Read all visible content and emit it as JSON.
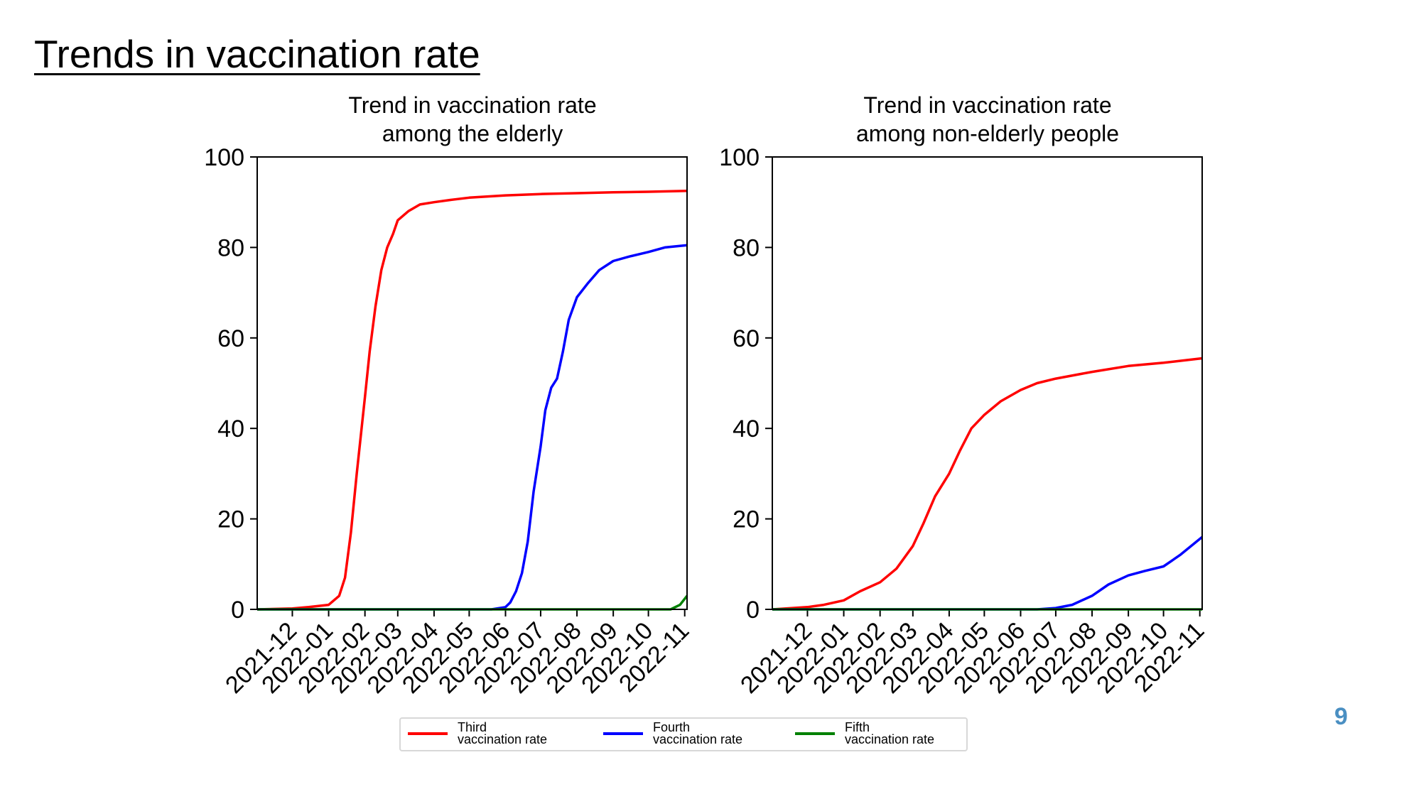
{
  "page": {
    "title": "Trends in vaccination rate",
    "page_number": "9"
  },
  "colors": {
    "third": "#ff0000",
    "fourth": "#0000ff",
    "fifth": "#008000",
    "page_number": "#4a8fc2"
  },
  "legend": {
    "items": [
      {
        "key": "third",
        "label": "Third\nvaccination rate"
      },
      {
        "key": "fourth",
        "label": "Fourth\nvaccination rate"
      },
      {
        "key": "fifth",
        "label": "Fifth\nvaccination rate"
      }
    ]
  },
  "chart_data": [
    {
      "type": "line",
      "title": "Trend in vaccination rate\namong the elderly",
      "ylim": [
        0,
        100
      ],
      "yticks": [
        0,
        20,
        40,
        60,
        80,
        100
      ],
      "xlim": [
        "2021-11-01",
        "2022-11-03"
      ],
      "xticks": [
        "2021-12",
        "2022-01",
        "2022-02",
        "2022-03",
        "2022-04",
        "2022-05",
        "2022-06",
        "2022-07",
        "2022-08",
        "2022-09",
        "2022-10",
        "2022-11"
      ],
      "grid": false,
      "series": [
        {
          "name": "Third\nvaccination rate",
          "color_key": "third",
          "x": [
            "2021-11-01",
            "2021-12-01",
            "2021-12-15",
            "2022-01-01",
            "2022-01-10",
            "2022-01-15",
            "2022-01-20",
            "2022-01-25",
            "2022-02-01",
            "2022-02-05",
            "2022-02-10",
            "2022-02-15",
            "2022-02-20",
            "2022-02-25",
            "2022-03-01",
            "2022-03-10",
            "2022-03-20",
            "2022-04-01",
            "2022-04-15",
            "2022-05-01",
            "2022-06-01",
            "2022-07-01",
            "2022-08-01",
            "2022-09-01",
            "2022-10-01",
            "2022-11-03"
          ],
          "y": [
            0,
            0.2,
            0.5,
            1,
            3,
            7,
            17,
            30,
            47,
            57,
            67,
            75,
            80,
            83,
            86,
            88,
            89.5,
            90,
            90.5,
            91,
            91.5,
            91.8,
            92,
            92.2,
            92.3,
            92.5
          ]
        },
        {
          "name": "Fourth\nvaccination rate",
          "color_key": "fourth",
          "x": [
            "2021-11-01",
            "2022-05-20",
            "2022-06-01",
            "2022-06-05",
            "2022-06-10",
            "2022-06-15",
            "2022-06-20",
            "2022-06-25",
            "2022-07-01",
            "2022-07-05",
            "2022-07-10",
            "2022-07-15",
            "2022-07-20",
            "2022-07-25",
            "2022-08-01",
            "2022-08-10",
            "2022-08-20",
            "2022-09-01",
            "2022-09-15",
            "2022-10-01",
            "2022-10-15",
            "2022-11-03"
          ],
          "y": [
            0,
            0,
            0.5,
            1.5,
            4,
            8,
            15,
            26,
            36,
            44,
            49,
            51,
            57,
            64,
            69,
            72,
            75,
            77,
            78,
            79,
            80,
            80.5
          ]
        },
        {
          "name": "Fifth\nvaccination rate",
          "color_key": "fifth",
          "x": [
            "2021-11-01",
            "2022-10-20",
            "2022-10-28",
            "2022-11-03"
          ],
          "y": [
            0,
            0,
            1,
            3
          ]
        }
      ]
    },
    {
      "type": "line",
      "title": "Trend in vaccination rate\namong non-elderly people",
      "ylim": [
        0,
        100
      ],
      "yticks": [
        0,
        20,
        40,
        60,
        80,
        100
      ],
      "xlim": [
        "2021-11-01",
        "2022-11-03"
      ],
      "xticks": [
        "2021-12",
        "2022-01",
        "2022-02",
        "2022-03",
        "2022-04",
        "2022-05",
        "2022-06",
        "2022-07",
        "2022-08",
        "2022-09",
        "2022-10",
        "2022-11"
      ],
      "grid": false,
      "series": [
        {
          "name": "Third\nvaccination rate",
          "color_key": "third",
          "x": [
            "2021-11-01",
            "2021-12-01",
            "2021-12-15",
            "2022-01-01",
            "2022-01-15",
            "2022-02-01",
            "2022-02-15",
            "2022-03-01",
            "2022-03-10",
            "2022-03-20",
            "2022-04-01",
            "2022-04-10",
            "2022-04-20",
            "2022-05-01",
            "2022-05-15",
            "2022-06-01",
            "2022-06-15",
            "2022-07-01",
            "2022-08-01",
            "2022-09-01",
            "2022-10-01",
            "2022-11-03"
          ],
          "y": [
            0,
            0.5,
            1,
            2,
            4,
            6,
            9,
            14,
            19,
            25,
            30,
            35,
            40,
            43,
            46,
            48.5,
            50,
            51,
            52.5,
            53.8,
            54.5,
            55.5
          ]
        },
        {
          "name": "Fourth\nvaccination rate",
          "color_key": "fourth",
          "x": [
            "2021-11-01",
            "2022-06-15",
            "2022-07-01",
            "2022-07-15",
            "2022-08-01",
            "2022-08-15",
            "2022-09-01",
            "2022-09-15",
            "2022-10-01",
            "2022-10-15",
            "2022-11-03"
          ],
          "y": [
            0,
            0,
            0.3,
            1,
            3,
            5.5,
            7.5,
            8.5,
            9.5,
            12,
            16
          ]
        },
        {
          "name": "Fifth\nvaccination rate",
          "color_key": "fifth",
          "x": [
            "2021-11-01",
            "2022-11-03"
          ],
          "y": [
            0,
            0
          ]
        }
      ]
    }
  ]
}
